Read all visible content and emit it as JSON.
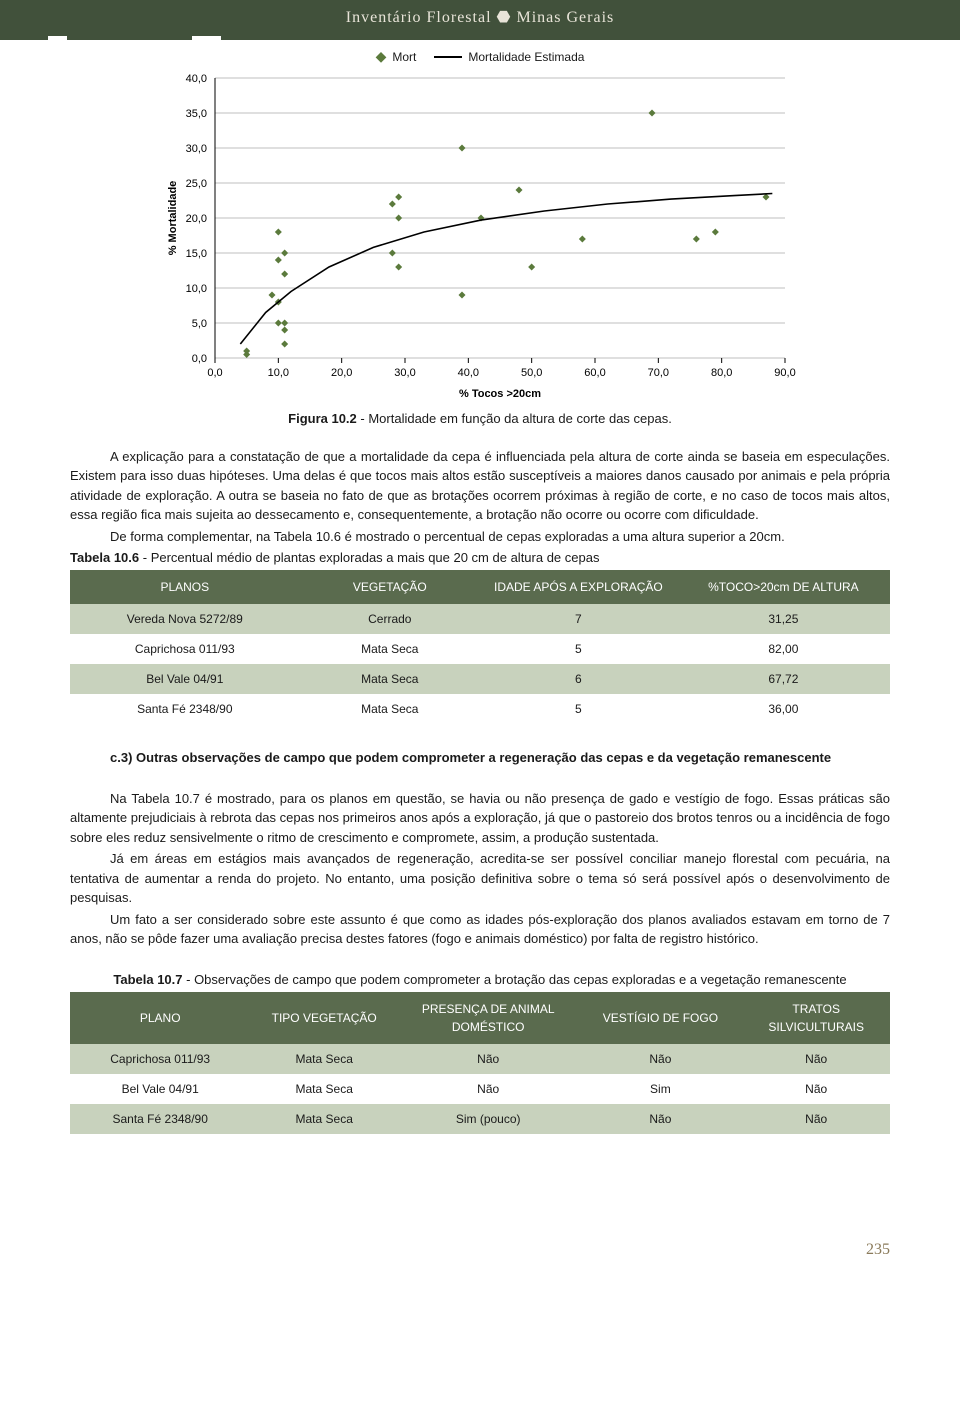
{
  "header": {
    "title": "Inventário Florestal ⬣ Minas Gerais"
  },
  "chart": {
    "type": "scatter+line",
    "legend": {
      "scatter": "Mort",
      "line": "Mortalidade Estimada"
    },
    "xlabel": "% Tocos >20cm",
    "ylabel": "% Mortalidade",
    "xlim": [
      0,
      90
    ],
    "ylim": [
      0,
      40
    ],
    "xtick_step": 10,
    "ytick_step": 5,
    "xtick_fmt": ",0",
    "background_color": "#ffffff",
    "grid_color": "#bfbfbf",
    "axis_fontsize": 11,
    "marker_color": "#5b7a3c",
    "marker_shape": "diamond",
    "marker_size": 7,
    "line_color": "#000000",
    "line_width": 1.6,
    "scatter": [
      [
        5,
        0.5
      ],
      [
        5,
        1
      ],
      [
        9,
        9
      ],
      [
        10,
        5
      ],
      [
        10,
        8
      ],
      [
        10,
        18
      ],
      [
        10,
        14
      ],
      [
        11,
        15
      ],
      [
        11,
        12
      ],
      [
        11,
        2
      ],
      [
        11,
        5
      ],
      [
        11,
        4
      ],
      [
        28,
        15
      ],
      [
        28,
        22
      ],
      [
        29,
        23
      ],
      [
        29,
        20
      ],
      [
        29,
        13
      ],
      [
        39,
        9
      ],
      [
        39,
        30
      ],
      [
        42,
        20
      ],
      [
        48,
        24
      ],
      [
        50,
        13
      ],
      [
        58,
        17
      ],
      [
        69,
        35
      ],
      [
        76,
        17
      ],
      [
        79,
        18
      ],
      [
        87,
        23
      ]
    ],
    "curve": [
      [
        4,
        2
      ],
      [
        8,
        6.5
      ],
      [
        12,
        9.5
      ],
      [
        18,
        13
      ],
      [
        25,
        15.8
      ],
      [
        33,
        18
      ],
      [
        42,
        19.7
      ],
      [
        52,
        21
      ],
      [
        62,
        22
      ],
      [
        72,
        22.7
      ],
      [
        82,
        23.2
      ],
      [
        88,
        23.5
      ]
    ]
  },
  "figure_caption": {
    "label": "Figura 10.2",
    "text": " - Mortalidade em função da altura de corte das cepas."
  },
  "para1": "A explicação para a constatação de que a mortalidade da cepa é influenciada pela altura de corte ainda se baseia em especulações. Existem para isso duas hipóteses. Uma delas é que tocos mais altos estão susceptíveis a maiores danos causado por animais e pela própria atividade de exploração. A outra se baseia no fato de que as brotações ocorrem próximas à região de corte, e no caso de tocos mais altos, essa região fica mais sujeita ao dessecamento e, consequentemente, a brotação não ocorre  ou ocorre com dificuldade.",
  "para2": "De forma complementar, na Tabela 10.6 é mostrado o percentual de cepas exploradas a uma altura superior a 20cm.",
  "table6": {
    "caption_label": "Tabela 10.6",
    "caption_text": " - Percentual médio de plantas exploradas a mais que 20 cm de altura de cepas",
    "columns": [
      "PLANOS",
      "VEGETAÇÃO",
      "IDADE APÓS A EXPLORAÇÃO",
      "%TOCO>20cm DE ALTURA"
    ],
    "col_widths": [
      "28%",
      "22%",
      "24%",
      "26%"
    ],
    "header_bg": "#5a6b4e",
    "header_color": "#ffffff",
    "shade_bg": "#c8d2bd",
    "rows": [
      {
        "shade": true,
        "cells": [
          "Vereda Nova 5272/89",
          "Cerrado",
          "7",
          "31,25"
        ]
      },
      {
        "shade": false,
        "cells": [
          "Caprichosa 011/93",
          "Mata Seca",
          "5",
          "82,00"
        ]
      },
      {
        "shade": true,
        "cells": [
          "Bel Vale 04/91",
          "Mata Seca",
          "6",
          "67,72"
        ]
      },
      {
        "shade": false,
        "cells": [
          "Santa Fé 2348/90",
          "Mata Seca",
          "5",
          "36,00"
        ]
      }
    ]
  },
  "section_c3": {
    "heading": "c.3) Outras observações de campo que podem comprometer a regeneração das cepas e da vegetação remanescente",
    "p1": "Na Tabela 10.7 é mostrado, para os planos em questão, se havia ou não  presença de gado e vestígio de fogo. Essas práticas são altamente prejudiciais à rebrota das cepas nos primeiros anos após a exploração, já que o pastoreio dos brotos tenros ou a incidência de fogo sobre eles reduz sensivelmente o ritmo de crescimento e compromete, assim, a produção sustentada.",
    "p2": "Já em áreas em estágios mais avançados de regeneração, acredita-se ser possível conciliar manejo florestal com pecuária, na tentativa de aumentar a renda do projeto. No entanto, uma posição definitiva sobre o tema só será possível após o desenvolvimento de pesquisas.",
    "p3": "Um fato a ser considerado sobre este assunto é que como as idades pós-exploração dos planos avaliados estavam em torno de 7 anos, não se pôde fazer uma avaliação precisa destes fatores (fogo e animais doméstico) por falta de registro histórico."
  },
  "table7": {
    "caption_label": "Tabela 10.7",
    "caption_text": " - Observações de campo que podem comprometer a brotação das cepas exploradas e a vegetação remanescente",
    "columns": [
      "PLANO",
      "TIPO VEGETAÇÃO",
      "PRESENÇA DE ANIMAL DOMÉSTICO",
      "VESTÍGIO DE FOGO",
      "TRATOS SILVICULTURAIS"
    ],
    "col_widths": [
      "22%",
      "18%",
      "22%",
      "20%",
      "18%"
    ],
    "rows": [
      {
        "shade": true,
        "cells": [
          "Caprichosa 011/93",
          "Mata Seca",
          "Não",
          "Não",
          "Não"
        ]
      },
      {
        "shade": false,
        "cells": [
          "Bel Vale 04/91",
          "Mata Seca",
          "Não",
          "Sim",
          "Não"
        ]
      },
      {
        "shade": true,
        "cells": [
          "Santa Fé 2348/90",
          "Mata Seca",
          "Sim (pouco)",
          "Não",
          "Não"
        ]
      }
    ]
  },
  "page_number": "235"
}
